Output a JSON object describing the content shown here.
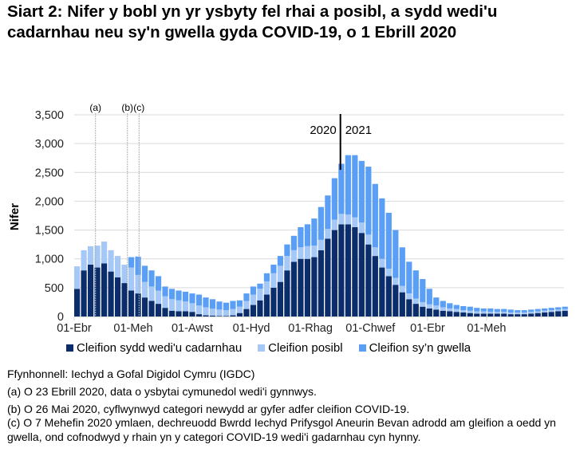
{
  "title": "Siart 2: Nifer y bobl yn yr ysbyty fel rhai a posibl, a sydd wedi'u cadarnhau neu sy'n gwella gyda COVID-19, o 1 Ebrill 2020",
  "footnotes": [
    "Ffynhonnell: Iechyd a Gofal Digidol Cymru (IGDC)",
    "(a) O 23 Ebrill 2020, data o ysbytai cymunedol wedi'i gynnwys.",
    "(b) O 26 Mai 2020, cyflwynwyd categori newydd ar gyfer adfer cleifion COVID-19.",
    "(c) O 7 Mehefin 2020 ymlaen, dechreuodd Bwrdd Iechyd Prifysgol Aneurin Bevan adrodd am gleifion a oedd yn gwella, ond cofnodwyd y rhain yn y categori COVID-19 wedi'i gadarnhau cyn hynny."
  ],
  "chart_data": {
    "type": "bar",
    "stacked": true,
    "title": "Siart 2: Nifer y bobl yn yr ysbyty fel rhai a posibl, a sydd wedi'u cadarnhau neu sy'n gwella gyda COVID-19, o 1 Ebrill 2020",
    "xlabel": "",
    "ylabel": "Nifer",
    "ylim": [
      0,
      3500
    ],
    "yticks": [
      "0",
      "500",
      "1,000",
      "1,500",
      "2,000",
      "2,500",
      "3,000",
      "3,500"
    ],
    "ytick_values": [
      0,
      500,
      1000,
      1500,
      2000,
      2500,
      3000,
      3500
    ],
    "x_start": "2020-04-01",
    "x_interval_days": 7,
    "x_total_days": 506,
    "xticks": [
      {
        "label": "01-Ebr",
        "day": 0
      },
      {
        "label": "01-Meh",
        "day": 61
      },
      {
        "label": "01-Awst",
        "day": 122
      },
      {
        "label": "01-Hyd",
        "day": 183
      },
      {
        "label": "01-Rhag",
        "day": 244
      },
      {
        "label": "01-Chwef",
        "day": 306
      },
      {
        "label": "01-Ebr",
        "day": 365
      },
      {
        "label": "01-Meh",
        "day": 426
      }
    ],
    "annotations": [
      {
        "label": "(a)",
        "day": 22
      },
      {
        "label": "(b)",
        "day": 55
      },
      {
        "label": "(c)",
        "day": 67
      }
    ],
    "year_divider": {
      "day": 275,
      "left_label": "2020",
      "right_label": "2021"
    },
    "legend_position": "bottom",
    "grid": true,
    "series": [
      {
        "name": "Cleifion sydd wedi'u cadarnhau",
        "color": "#0b2d6b",
        "values": [
          480,
          800,
          900,
          850,
          920,
          780,
          680,
          580,
          450,
          400,
          330,
          270,
          220,
          150,
          100,
          90,
          90,
          80,
          40,
          20,
          15,
          10,
          10,
          20,
          60,
          130,
          200,
          280,
          380,
          500,
          600,
          800,
          950,
          1000,
          1000,
          1030,
          1150,
          1350,
          1500,
          1600,
          1600,
          1550,
          1450,
          1250,
          1050,
          850,
          700,
          550,
          420,
          300,
          220,
          170,
          140,
          120,
          100,
          90,
          80,
          70,
          60,
          50,
          50,
          50,
          50,
          50,
          40,
          40,
          40,
          50,
          60,
          70,
          80,
          90,
          100
        ]
      },
      {
        "name": "Cleifion posibl",
        "color": "#a6c8f7",
        "values": [
          390,
          350,
          320,
          380,
          380,
          370,
          370,
          320,
          400,
          320,
          270,
          250,
          230,
          200,
          200,
          190,
          170,
          150,
          150,
          140,
          120,
          110,
          100,
          110,
          110,
          140,
          180,
          200,
          230,
          250,
          280,
          250,
          200,
          200,
          220,
          200,
          180,
          170,
          180,
          180,
          170,
          170,
          180,
          170,
          150,
          150,
          130,
          120,
          110,
          100,
          90,
          80,
          70,
          70,
          60,
          50,
          50,
          40,
          40,
          40,
          40,
          30,
          30,
          30,
          30,
          30,
          30,
          30,
          30,
          30,
          30,
          30,
          30
        ]
      },
      {
        "name": "Cleifion sy’n gwella",
        "color": "#5a9ff5",
        "values": [
          0,
          0,
          0,
          0,
          0,
          0,
          0,
          0,
          180,
          320,
          280,
          280,
          250,
          170,
          180,
          170,
          170,
          170,
          190,
          170,
          165,
          140,
          130,
          140,
          110,
          130,
          140,
          90,
          140,
          150,
          170,
          200,
          250,
          350,
          380,
          470,
          570,
          580,
          720,
          870,
          1030,
          1080,
          1070,
          1180,
          1100,
          1050,
          970,
          830,
          670,
          550,
          490,
          400,
          270,
          140,
          110,
          90,
          70,
          70,
          70,
          60,
          50,
          60,
          50,
          50,
          50,
          40,
          40,
          40,
          40,
          40,
          40,
          40,
          40
        ]
      }
    ]
  }
}
